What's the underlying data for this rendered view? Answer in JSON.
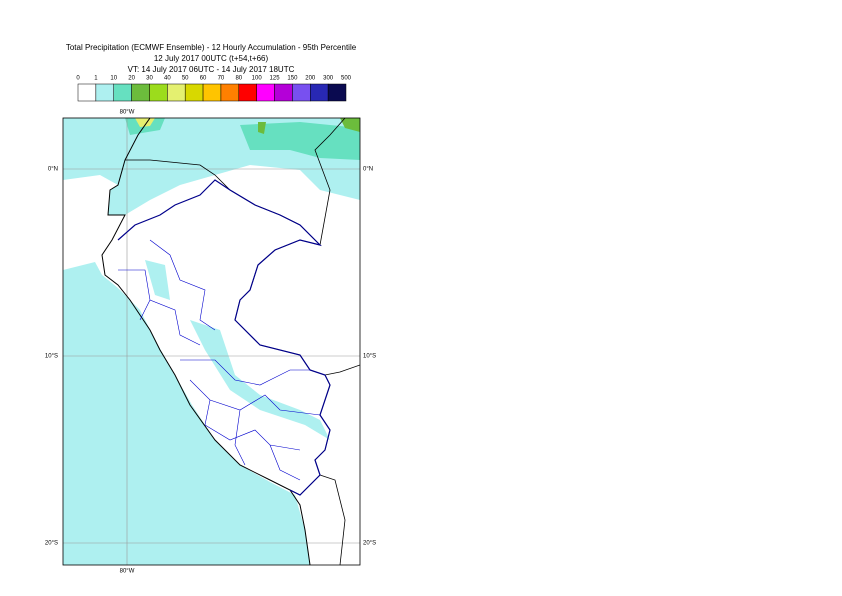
{
  "header": {
    "lines": [
      "Total Precipitation (ECMWF Ensemble) - 12 Hourly Accumulation - 95th Percentile",
      "12 July 2017 00UTC (t+54,t+66)",
      "VT: 14 July 2017 06UTC - 14 July 2017 18UTC"
    ]
  },
  "legend": {
    "labels": [
      "0",
      "1",
      "10",
      "20",
      "30",
      "40",
      "50",
      "60",
      "70",
      "80",
      "100",
      "125",
      "150",
      "200",
      "300",
      "500"
    ],
    "colors": [
      "#ffffff",
      "#aef0f0",
      "#66e0c0",
      "#6cbc3c",
      "#9cdc1c",
      "#e4f070",
      "#d8d800",
      "#ffc400",
      "#ff8000",
      "#ff0000",
      "#ff00ff",
      "#b400d8",
      "#7850f0",
      "#2828b4",
      "#0a0a50"
    ]
  },
  "map": {
    "lat_labels": [
      "0°N",
      "10°S",
      "20°S"
    ],
    "lon_labels": [
      "80°W"
    ]
  }
}
